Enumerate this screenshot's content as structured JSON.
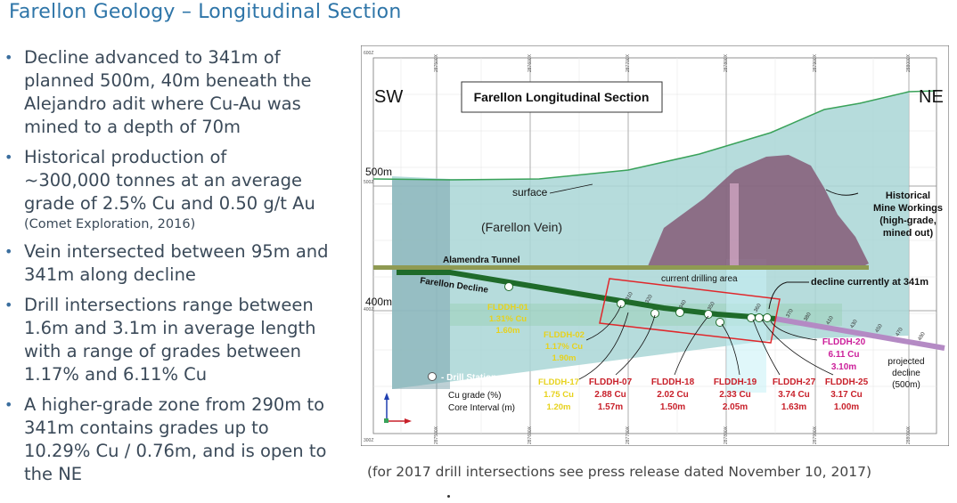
{
  "title": "Farellon Geology – Longitudinal Section",
  "bullets": [
    {
      "lines": [
        "Decline advanced to 341m of",
        "planned 500m, 40m beneath the",
        "Alejandro adit where Cu-Au was",
        "mined to a depth of 70m"
      ],
      "small": ""
    },
    {
      "lines": [
        "Historical production of",
        "~300,000 tonnes at an average",
        "grade of 2.5% Cu and 0.50 g/t Au"
      ],
      "small": "(Comet Exploration, 2016)"
    },
    {
      "lines": [
        "Vein intersected between 95m and",
        "341m along decline"
      ],
      "small": ""
    },
    {
      "lines": [
        "Drill intersections range between",
        "1.6m and 3.1m in average length",
        "with a range of grades between",
        "1.17% and 6.11% Cu"
      ],
      "small": ""
    },
    {
      "lines": [
        "A higher-grade zone from 290m to",
        "341m contains grades up to",
        "10.29% Cu / 0.76m, and is open to",
        "the NE"
      ],
      "small": ""
    }
  ],
  "caption": "(for 2017 drill intersections see press release dated November 10, 2017)",
  "diagram": {
    "section_title": "Farellon Longitudinal Section",
    "sw": "SW",
    "ne": "NE",
    "elev_500": "500m",
    "elev_400": "400m",
    "frame_labels": {
      "top": "600Z",
      "mid1": "500Z",
      "mid2": "400Z",
      "bottom": "300Z"
    },
    "easting_labels": [
      "287500X",
      "287600X",
      "287700X",
      "287800X",
      "287900X",
      "288000X"
    ],
    "surface": "surface",
    "vein": "(Farellon Vein)",
    "tunnel": "Alamendra Tunnel",
    "decline": "Farellon Decline",
    "drilling_area": "current drilling area",
    "decline_current": "decline currently at 341m",
    "historical": [
      "Historical",
      "Mine Workings",
      "(high-grade,",
      "mined out)"
    ],
    "projected": [
      "projected",
      "decline",
      "(500m)"
    ],
    "drill_station": "- Drill Station",
    "legend_cu": "Cu grade (%)",
    "legend_core": "Core Interval (m)",
    "chainages": [
      "310",
      "320",
      "340",
      "350",
      "360",
      "370",
      "380",
      "410",
      "430",
      "450",
      "470",
      "490"
    ],
    "yellow_holes": [
      {
        "name": "FLDDH-01",
        "cu": "1.31% Cu",
        "len": "1.60m"
      },
      {
        "name": "FLDDH-02",
        "cu": "1.17% Cu",
        "len": "1.90m"
      },
      {
        "name": "FLDDH-17",
        "cu": "1.75 Cu",
        "len": "1.20m"
      }
    ],
    "red_holes": [
      {
        "name": "FLDDH-07",
        "cu": "2.88 Cu",
        "len": "1.57m"
      },
      {
        "name": "FLDDH-18",
        "cu": "2.02 Cu",
        "len": "1.50m"
      },
      {
        "name": "FLDDH-19",
        "cu": "2.33 Cu",
        "len": "2.05m"
      },
      {
        "name": "FLDDH-27",
        "cu": "3.74 Cu",
        "len": "1.63m"
      },
      {
        "name": "FLDDH-25",
        "cu": "3.17 Cu",
        "len": "1.00m"
      }
    ],
    "magenta_hole": {
      "name": "FLDDH-20",
      "cu": "6.11 Cu",
      "len": "3.10m"
    },
    "colors": {
      "vein": "#a9d6d6",
      "surface": "#3aa25a",
      "workings": "#7d4a6a",
      "decline": "#1f6b2a",
      "tunnel": "#8f9a52",
      "drill_box": "#e0272b",
      "yellow": "#e7d21c",
      "red": "#c8202a",
      "magenta": "#cc1f9a",
      "projected": "#b48ac4"
    }
  }
}
